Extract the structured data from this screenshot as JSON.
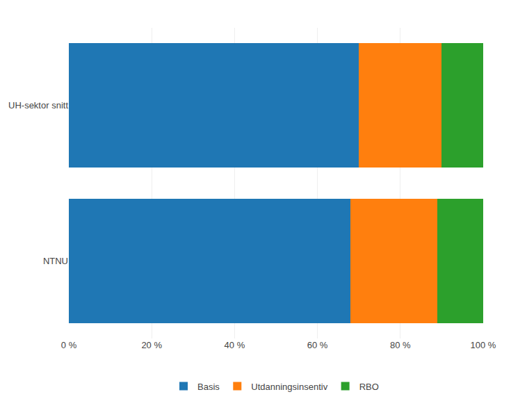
{
  "chart_data": {
    "type": "bar",
    "orientation": "horizontal",
    "stacked": true,
    "categories": [
      "UH-sektor snitt",
      "NTNU"
    ],
    "series": [
      {
        "name": "Basis",
        "values": [
          70,
          68
        ]
      },
      {
        "name": "Utdanningsinsentiv",
        "values": [
          20,
          21
        ]
      },
      {
        "name": "RBO",
        "values": [
          10,
          11
        ]
      }
    ],
    "xlim": [
      0,
      100
    ],
    "xticks": [
      {
        "value": 0,
        "label": "0 %"
      },
      {
        "value": 20,
        "label": "20 %"
      },
      {
        "value": 40,
        "label": "40 %"
      },
      {
        "value": 60,
        "label": "60 %"
      },
      {
        "value": 80,
        "label": "80 %"
      },
      {
        "value": 100,
        "label": "100 %"
      }
    ],
    "grid": true,
    "legend": "bottom"
  }
}
